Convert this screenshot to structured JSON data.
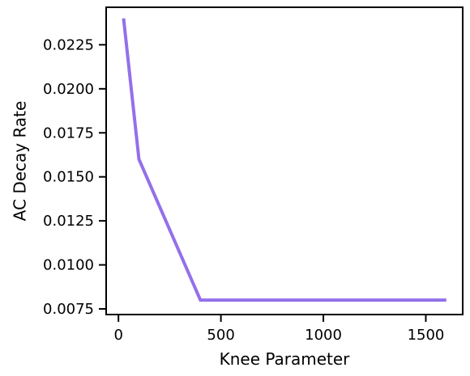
{
  "chart_data": {
    "type": "line",
    "xlabel": "Knee Parameter",
    "ylabel": "AC Decay Rate",
    "xlim": [
      -60,
      1680
    ],
    "ylim": [
      0.00718,
      0.02463
    ],
    "xticks": [
      0,
      500,
      1000,
      1500
    ],
    "xtick_labels": [
      "0",
      "500",
      "1000",
      "1500"
    ],
    "yticks": [
      0.0075,
      0.01,
      0.0125,
      0.015,
      0.0175,
      0.02,
      0.0225
    ],
    "ytick_labels": [
      "0.0075",
      "0.0100",
      "0.0125",
      "0.0150",
      "0.0175",
      "0.0200",
      "0.0225"
    ],
    "grid": false,
    "series": [
      {
        "color": "#9370eb",
        "x": [
          25,
          100,
          400,
          1600
        ],
        "y": [
          0.024,
          0.016,
          0.008,
          0.008
        ]
      }
    ]
  }
}
